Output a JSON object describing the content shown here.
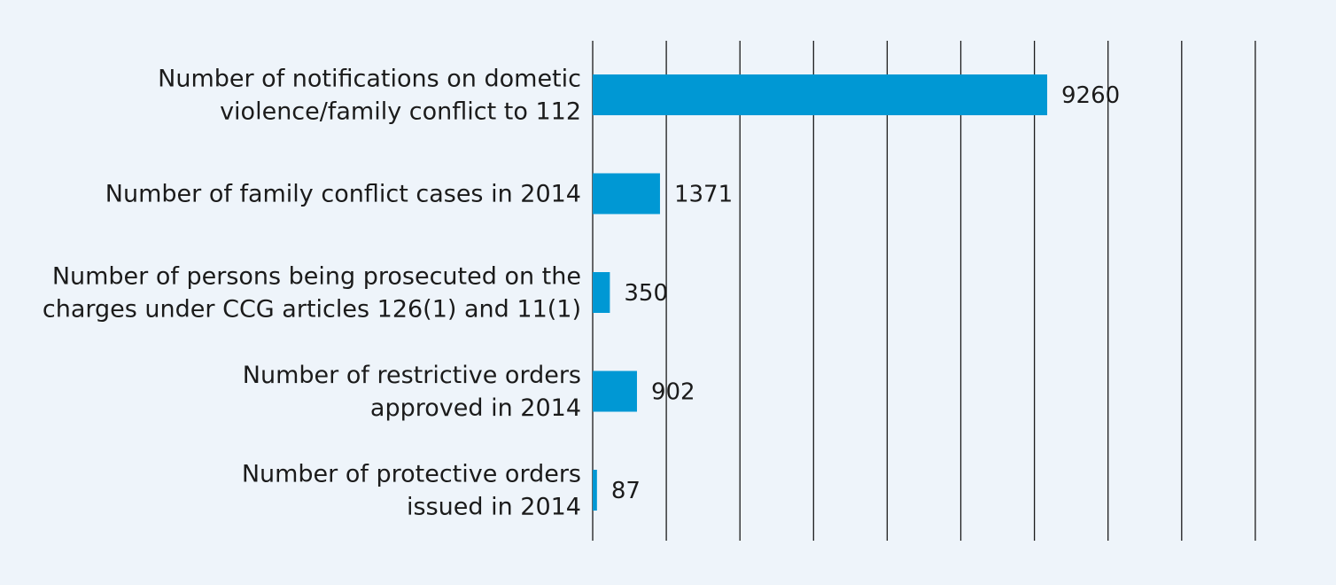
{
  "chart_data": {
    "type": "bar",
    "orientation": "horizontal",
    "title": "",
    "xlabel": "",
    "ylabel": "",
    "categories": [
      [
        "Number of notifications on dometic",
        "violence/family conflict to 112"
      ],
      [
        "Number of family conflict cases in 2014"
      ],
      [
        "Number of persons being prosecuted on the",
        "charges under CCG articles 126(1) and 11(1)"
      ],
      [
        "Number of restrictive orders",
        "approved in 2014"
      ],
      [
        "Number of protective orders",
        "issued in 2014"
      ]
    ],
    "values": [
      9260,
      1371,
      350,
      902,
      87
    ],
    "xlim": [
      0,
      15000
    ],
    "grid_step": 1500,
    "grid": true,
    "bar_color": "#0098d4",
    "background_color": "#eef4fa"
  }
}
